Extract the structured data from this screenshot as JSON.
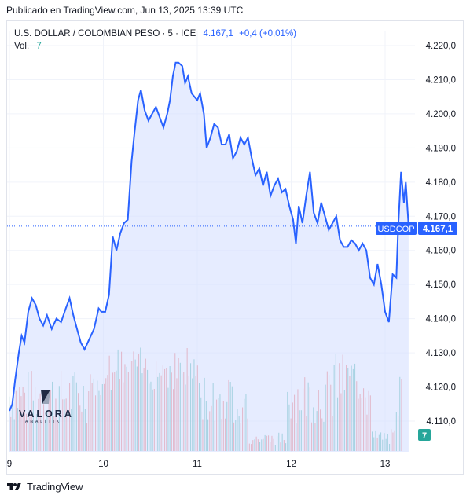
{
  "published": "Publicado en TradingView.com, Jun 13, 2025 13:39 UTC",
  "legend": {
    "symbol": "U.S. DOLLAR / COLOMBIAN PESO · 5 · ICE",
    "price": "4.167,1",
    "change": "+0,4 (+0,01%)",
    "vol_label": "Vol.",
    "vol_value": "7"
  },
  "price_tag": {
    "symbol": "USDCOP",
    "value": "4.167,1"
  },
  "vol_tag": "7",
  "watermark": {
    "brand": "VALORA",
    "sub": "ANALITIK"
  },
  "footer": {
    "brand": "TradingView"
  },
  "colors": {
    "line": "#2962ff",
    "area": "#d6e0ff",
    "up": "#26a69a",
    "down": "#ef5350",
    "grid": "#f0f3fa"
  },
  "icons": {
    "footer_logo": "tradingview-logo-icon",
    "watermark": "valora-logo-icon"
  },
  "chart_data": {
    "type": "area",
    "title": "",
    "xlabel": "",
    "ylabel": "",
    "x_ticks": [
      "9",
      "10",
      "11",
      "12",
      "13"
    ],
    "y_ticks": [
      "4.110,0",
      "4.120,0",
      "4.130,0",
      "4.140,0",
      "4.150,0",
      "4.160,0",
      "4.170,0",
      "4.180,0",
      "4.190,0",
      "4.200,0",
      "4.210,0",
      "4.220,0"
    ],
    "ylim": [
      4106,
      4223
    ],
    "xlim": [
      9.0,
      13.25
    ],
    "last_price": 4167.1,
    "grid": true,
    "series": [
      {
        "values": [
          [
            9.0,
            4113
          ],
          [
            9.03,
            4115
          ],
          [
            9.06,
            4122
          ],
          [
            9.1,
            4130
          ],
          [
            9.13,
            4135
          ],
          [
            9.16,
            4133
          ],
          [
            9.2,
            4142
          ],
          [
            9.24,
            4146
          ],
          [
            9.28,
            4144
          ],
          [
            9.32,
            4140
          ],
          [
            9.36,
            4138
          ],
          [
            9.4,
            4141
          ],
          [
            9.45,
            4137
          ],
          [
            9.5,
            4140
          ],
          [
            9.55,
            4139
          ],
          [
            9.6,
            4143
          ],
          [
            9.64,
            4146
          ],
          [
            9.68,
            4141
          ],
          [
            9.72,
            4137
          ],
          [
            9.76,
            4133
          ],
          [
            9.8,
            4131
          ],
          [
            9.85,
            4134
          ],
          [
            9.9,
            4137
          ],
          [
            9.95,
            4143
          ],
          [
            9.98,
            4142
          ],
          [
            10.02,
            4142
          ],
          [
            10.06,
            4147
          ],
          [
            10.1,
            4164
          ],
          [
            10.14,
            4160
          ],
          [
            10.18,
            4165
          ],
          [
            10.22,
            4168
          ],
          [
            10.26,
            4169
          ],
          [
            10.3,
            4186
          ],
          [
            10.33,
            4194
          ],
          [
            10.37,
            4204
          ],
          [
            10.4,
            4207
          ],
          [
            10.44,
            4201
          ],
          [
            10.48,
            4198
          ],
          [
            10.52,
            4200
          ],
          [
            10.56,
            4202
          ],
          [
            10.6,
            4199
          ],
          [
            10.64,
            4196
          ],
          [
            10.68,
            4200
          ],
          [
            10.71,
            4204
          ],
          [
            10.74,
            4211
          ],
          [
            10.77,
            4215
          ],
          [
            10.8,
            4215
          ],
          [
            10.84,
            4214
          ],
          [
            10.87,
            4209
          ],
          [
            10.9,
            4211
          ],
          [
            10.94,
            4206
          ],
          [
            10.97,
            4205
          ],
          [
            11.0,
            4204
          ],
          [
            11.03,
            4206
          ],
          [
            11.07,
            4200
          ],
          [
            11.1,
            4190
          ],
          [
            11.14,
            4193
          ],
          [
            11.18,
            4197
          ],
          [
            11.22,
            4196
          ],
          [
            11.26,
            4191
          ],
          [
            11.3,
            4191
          ],
          [
            11.34,
            4194
          ],
          [
            11.38,
            4187
          ],
          [
            11.42,
            4189
          ],
          [
            11.46,
            4193
          ],
          [
            11.5,
            4191
          ],
          [
            11.54,
            4193
          ],
          [
            11.58,
            4187
          ],
          [
            11.62,
            4182
          ],
          [
            11.66,
            4184
          ],
          [
            11.7,
            4179
          ],
          [
            11.74,
            4183
          ],
          [
            11.78,
            4176
          ],
          [
            11.82,
            4179
          ],
          [
            11.86,
            4181
          ],
          [
            11.9,
            4177
          ],
          [
            11.94,
            4178
          ],
          [
            11.98,
            4173
          ],
          [
            12.02,
            4169
          ],
          [
            12.05,
            4162
          ],
          [
            12.08,
            4173
          ],
          [
            12.12,
            4168
          ],
          [
            12.16,
            4176
          ],
          [
            12.2,
            4183
          ],
          [
            12.24,
            4171
          ],
          [
            12.28,
            4168
          ],
          [
            12.32,
            4174
          ],
          [
            12.36,
            4170
          ],
          [
            12.4,
            4166
          ],
          [
            12.44,
            4168
          ],
          [
            12.48,
            4170
          ],
          [
            12.52,
            4163
          ],
          [
            12.56,
            4161
          ],
          [
            12.6,
            4161
          ],
          [
            12.64,
            4163
          ],
          [
            12.68,
            4162
          ],
          [
            12.72,
            4160
          ],
          [
            12.76,
            4162
          ],
          [
            12.8,
            4160
          ],
          [
            12.84,
            4152
          ],
          [
            12.88,
            4150
          ],
          [
            12.92,
            4156
          ],
          [
            12.96,
            4150
          ],
          [
            13.0,
            4142
          ],
          [
            13.04,
            4139
          ],
          [
            13.08,
            4153
          ],
          [
            13.12,
            4152
          ],
          [
            13.14,
            4167
          ],
          [
            13.17,
            4183
          ],
          [
            13.2,
            4174
          ],
          [
            13.22,
            4180
          ],
          [
            13.25,
            4167.1
          ]
        ]
      }
    ],
    "volume_max": 7,
    "volume_last": 7
  }
}
